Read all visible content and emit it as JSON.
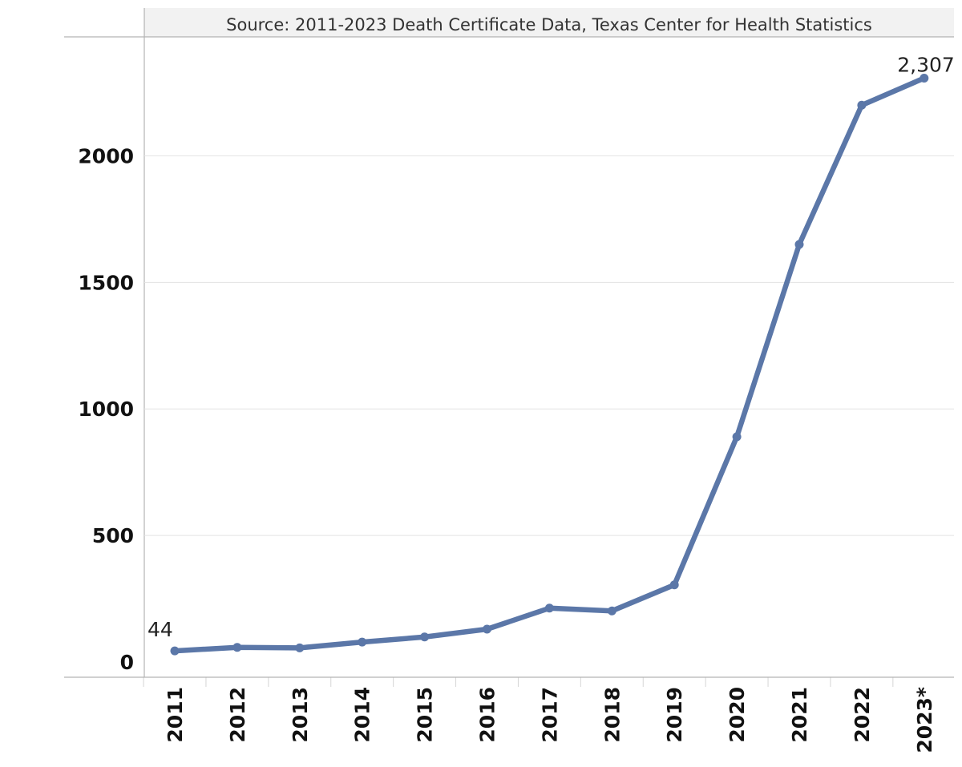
{
  "source_note": "Source: 2011-2023 Death Certificate Data, Texas Center for Health Statistics",
  "chart_data": {
    "type": "line",
    "title": "",
    "xlabel": "",
    "ylabel": "",
    "categories": [
      "2011",
      "2012",
      "2013",
      "2014",
      "2015",
      "2016",
      "2017",
      "2018",
      "2019",
      "2020",
      "2021",
      "2022",
      "2023*"
    ],
    "series": [
      {
        "values": [
          44,
          58,
          56,
          79,
          99,
          130,
          213,
          202,
          305,
          890,
          1650,
          2200,
          2307
        ],
        "color": "#5b77a8"
      }
    ],
    "data_labels": [
      {
        "category": "2011",
        "text": "44"
      },
      {
        "category": "2023*",
        "text": "2,307"
      }
    ],
    "yticks": [
      0,
      500,
      1000,
      1500,
      2000
    ],
    "ylim": [
      -60,
      2470
    ],
    "grid": true,
    "legend": "none"
  }
}
